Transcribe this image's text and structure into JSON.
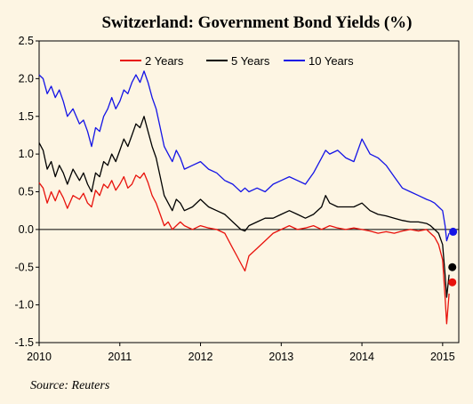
{
  "chart_data": {
    "type": "line",
    "title": "Switzerland: Government Bond Yields (%)",
    "xlabel": "",
    "ylabel": "",
    "xlim": [
      2010,
      2015.2
    ],
    "ylim": [
      -1.5,
      2.5
    ],
    "x_ticks": [
      "2010",
      "2011",
      "2012",
      "2013",
      "2014",
      "2015"
    ],
    "y_ticks": [
      "2.5",
      "2.0",
      "1.5",
      "1.0",
      "0.5",
      "0.0",
      "-0.5",
      "-1.0",
      "-1.5"
    ],
    "legend_position": "top-center",
    "source": "Source: Reuters",
    "series": [
      {
        "name": "2 Years",
        "color": "#e8120c",
        "points": [
          [
            2010.0,
            0.62
          ],
          [
            2010.05,
            0.55
          ],
          [
            2010.1,
            0.35
          ],
          [
            2010.15,
            0.5
          ],
          [
            2010.2,
            0.38
          ],
          [
            2010.25,
            0.52
          ],
          [
            2010.3,
            0.42
          ],
          [
            2010.35,
            0.28
          ],
          [
            2010.42,
            0.45
          ],
          [
            2010.5,
            0.4
          ],
          [
            2010.55,
            0.48
          ],
          [
            2010.6,
            0.35
          ],
          [
            2010.65,
            0.3
          ],
          [
            2010.7,
            0.52
          ],
          [
            2010.75,
            0.45
          ],
          [
            2010.8,
            0.6
          ],
          [
            2010.85,
            0.55
          ],
          [
            2010.9,
            0.65
          ],
          [
            2010.95,
            0.52
          ],
          [
            2011.0,
            0.6
          ],
          [
            2011.05,
            0.7
          ],
          [
            2011.1,
            0.55
          ],
          [
            2011.15,
            0.6
          ],
          [
            2011.2,
            0.72
          ],
          [
            2011.25,
            0.68
          ],
          [
            2011.3,
            0.75
          ],
          [
            2011.35,
            0.62
          ],
          [
            2011.4,
            0.45
          ],
          [
            2011.45,
            0.35
          ],
          [
            2011.5,
            0.2
          ],
          [
            2011.55,
            0.05
          ],
          [
            2011.6,
            0.1
          ],
          [
            2011.65,
            0.0
          ],
          [
            2011.7,
            0.05
          ],
          [
            2011.75,
            0.1
          ],
          [
            2011.8,
            0.05
          ],
          [
            2011.9,
            0.0
          ],
          [
            2012.0,
            0.05
          ],
          [
            2012.1,
            0.02
          ],
          [
            2012.2,
            0.0
          ],
          [
            2012.3,
            -0.05
          ],
          [
            2012.4,
            -0.25
          ],
          [
            2012.45,
            -0.35
          ],
          [
            2012.5,
            -0.45
          ],
          [
            2012.55,
            -0.55
          ],
          [
            2012.6,
            -0.35
          ],
          [
            2012.7,
            -0.25
          ],
          [
            2012.8,
            -0.15
          ],
          [
            2012.9,
            -0.05
          ],
          [
            2013.0,
            0.0
          ],
          [
            2013.1,
            0.05
          ],
          [
            2013.2,
            0.0
          ],
          [
            2013.3,
            0.02
          ],
          [
            2013.4,
            0.05
          ],
          [
            2013.5,
            0.0
          ],
          [
            2013.6,
            0.05
          ],
          [
            2013.7,
            0.02
          ],
          [
            2013.8,
            0.0
          ],
          [
            2013.9,
            0.02
          ],
          [
            2014.0,
            0.0
          ],
          [
            2014.1,
            -0.02
          ],
          [
            2014.2,
            -0.05
          ],
          [
            2014.3,
            -0.03
          ],
          [
            2014.4,
            -0.05
          ],
          [
            2014.5,
            -0.02
          ],
          [
            2014.6,
            0.0
          ],
          [
            2014.7,
            -0.02
          ],
          [
            2014.8,
            0.0
          ],
          [
            2014.85,
            -0.05
          ],
          [
            2014.9,
            -0.1
          ],
          [
            2014.95,
            -0.2
          ],
          [
            2015.0,
            -0.4
          ],
          [
            2015.03,
            -0.9
          ],
          [
            2015.05,
            -1.25
          ],
          [
            2015.08,
            -0.85
          ]
        ],
        "end_marker": [
          2015.12,
          -0.7
        ]
      },
      {
        "name": "5 Years",
        "color": "#000000",
        "points": [
          [
            2010.0,
            1.15
          ],
          [
            2010.05,
            1.05
          ],
          [
            2010.1,
            0.8
          ],
          [
            2010.15,
            0.9
          ],
          [
            2010.2,
            0.7
          ],
          [
            2010.25,
            0.85
          ],
          [
            2010.3,
            0.75
          ],
          [
            2010.35,
            0.6
          ],
          [
            2010.42,
            0.8
          ],
          [
            2010.5,
            0.65
          ],
          [
            2010.55,
            0.75
          ],
          [
            2010.6,
            0.6
          ],
          [
            2010.65,
            0.5
          ],
          [
            2010.7,
            0.75
          ],
          [
            2010.75,
            0.7
          ],
          [
            2010.8,
            0.9
          ],
          [
            2010.85,
            0.85
          ],
          [
            2010.9,
            1.0
          ],
          [
            2010.95,
            0.9
          ],
          [
            2011.0,
            1.05
          ],
          [
            2011.05,
            1.2
          ],
          [
            2011.1,
            1.1
          ],
          [
            2011.15,
            1.25
          ],
          [
            2011.2,
            1.4
          ],
          [
            2011.25,
            1.35
          ],
          [
            2011.3,
            1.5
          ],
          [
            2011.35,
            1.3
          ],
          [
            2011.4,
            1.1
          ],
          [
            2011.45,
            0.95
          ],
          [
            2011.5,
            0.7
          ],
          [
            2011.55,
            0.45
          ],
          [
            2011.6,
            0.35
          ],
          [
            2011.65,
            0.25
          ],
          [
            2011.7,
            0.4
          ],
          [
            2011.75,
            0.35
          ],
          [
            2011.8,
            0.25
          ],
          [
            2011.9,
            0.3
          ],
          [
            2012.0,
            0.4
          ],
          [
            2012.1,
            0.3
          ],
          [
            2012.2,
            0.25
          ],
          [
            2012.3,
            0.2
          ],
          [
            2012.4,
            0.1
          ],
          [
            2012.45,
            0.05
          ],
          [
            2012.5,
            0.0
          ],
          [
            2012.55,
            -0.02
          ],
          [
            2012.6,
            0.05
          ],
          [
            2012.7,
            0.1
          ],
          [
            2012.8,
            0.15
          ],
          [
            2012.9,
            0.15
          ],
          [
            2013.0,
            0.2
          ],
          [
            2013.1,
            0.25
          ],
          [
            2013.2,
            0.2
          ],
          [
            2013.3,
            0.15
          ],
          [
            2013.4,
            0.2
          ],
          [
            2013.5,
            0.3
          ],
          [
            2013.55,
            0.45
          ],
          [
            2013.6,
            0.35
          ],
          [
            2013.7,
            0.3
          ],
          [
            2013.8,
            0.3
          ],
          [
            2013.9,
            0.3
          ],
          [
            2014.0,
            0.35
          ],
          [
            2014.1,
            0.25
          ],
          [
            2014.2,
            0.2
          ],
          [
            2014.3,
            0.18
          ],
          [
            2014.4,
            0.15
          ],
          [
            2014.5,
            0.12
          ],
          [
            2014.6,
            0.1
          ],
          [
            2014.7,
            0.1
          ],
          [
            2014.8,
            0.08
          ],
          [
            2014.85,
            0.05
          ],
          [
            2014.9,
            0.0
          ],
          [
            2014.95,
            -0.05
          ],
          [
            2015.0,
            -0.2
          ],
          [
            2015.03,
            -0.6
          ],
          [
            2015.05,
            -0.9
          ],
          [
            2015.08,
            -0.6
          ]
        ],
        "end_marker": [
          2015.12,
          -0.5
        ]
      },
      {
        "name": "10 Years",
        "color": "#1414e6",
        "points": [
          [
            2010.0,
            2.05
          ],
          [
            2010.05,
            2.0
          ],
          [
            2010.1,
            1.8
          ],
          [
            2010.15,
            1.9
          ],
          [
            2010.2,
            1.75
          ],
          [
            2010.25,
            1.85
          ],
          [
            2010.3,
            1.7
          ],
          [
            2010.35,
            1.5
          ],
          [
            2010.42,
            1.6
          ],
          [
            2010.5,
            1.4
          ],
          [
            2010.55,
            1.45
          ],
          [
            2010.6,
            1.3
          ],
          [
            2010.65,
            1.1
          ],
          [
            2010.7,
            1.35
          ],
          [
            2010.75,
            1.3
          ],
          [
            2010.8,
            1.5
          ],
          [
            2010.85,
            1.6
          ],
          [
            2010.9,
            1.75
          ],
          [
            2010.95,
            1.6
          ],
          [
            2011.0,
            1.7
          ],
          [
            2011.05,
            1.85
          ],
          [
            2011.1,
            1.8
          ],
          [
            2011.15,
            1.95
          ],
          [
            2011.2,
            2.05
          ],
          [
            2011.25,
            1.95
          ],
          [
            2011.3,
            2.1
          ],
          [
            2011.35,
            1.95
          ],
          [
            2011.4,
            1.75
          ],
          [
            2011.45,
            1.6
          ],
          [
            2011.5,
            1.35
          ],
          [
            2011.55,
            1.1
          ],
          [
            2011.6,
            1.0
          ],
          [
            2011.65,
            0.9
          ],
          [
            2011.7,
            1.05
          ],
          [
            2011.75,
            0.95
          ],
          [
            2011.8,
            0.8
          ],
          [
            2011.9,
            0.85
          ],
          [
            2012.0,
            0.9
          ],
          [
            2012.1,
            0.8
          ],
          [
            2012.2,
            0.75
          ],
          [
            2012.3,
            0.65
          ],
          [
            2012.4,
            0.6
          ],
          [
            2012.45,
            0.55
          ],
          [
            2012.5,
            0.5
          ],
          [
            2012.55,
            0.55
          ],
          [
            2012.6,
            0.5
          ],
          [
            2012.7,
            0.55
          ],
          [
            2012.8,
            0.5
          ],
          [
            2012.9,
            0.6
          ],
          [
            2013.0,
            0.65
          ],
          [
            2013.1,
            0.7
          ],
          [
            2013.2,
            0.65
          ],
          [
            2013.3,
            0.6
          ],
          [
            2013.4,
            0.75
          ],
          [
            2013.5,
            0.95
          ],
          [
            2013.55,
            1.05
          ],
          [
            2013.6,
            1.0
          ],
          [
            2013.7,
            1.05
          ],
          [
            2013.8,
            0.95
          ],
          [
            2013.9,
            0.9
          ],
          [
            2014.0,
            1.2
          ],
          [
            2014.05,
            1.1
          ],
          [
            2014.1,
            1.0
          ],
          [
            2014.2,
            0.95
          ],
          [
            2014.3,
            0.85
          ],
          [
            2014.4,
            0.7
          ],
          [
            2014.5,
            0.55
          ],
          [
            2014.6,
            0.5
          ],
          [
            2014.7,
            0.45
          ],
          [
            2014.8,
            0.4
          ],
          [
            2014.85,
            0.38
          ],
          [
            2014.9,
            0.35
          ],
          [
            2014.95,
            0.3
          ],
          [
            2015.0,
            0.25
          ],
          [
            2015.03,
            0.05
          ],
          [
            2015.05,
            -0.15
          ],
          [
            2015.08,
            -0.05
          ]
        ],
        "end_marker": [
          2015.13,
          -0.03
        ]
      }
    ]
  }
}
